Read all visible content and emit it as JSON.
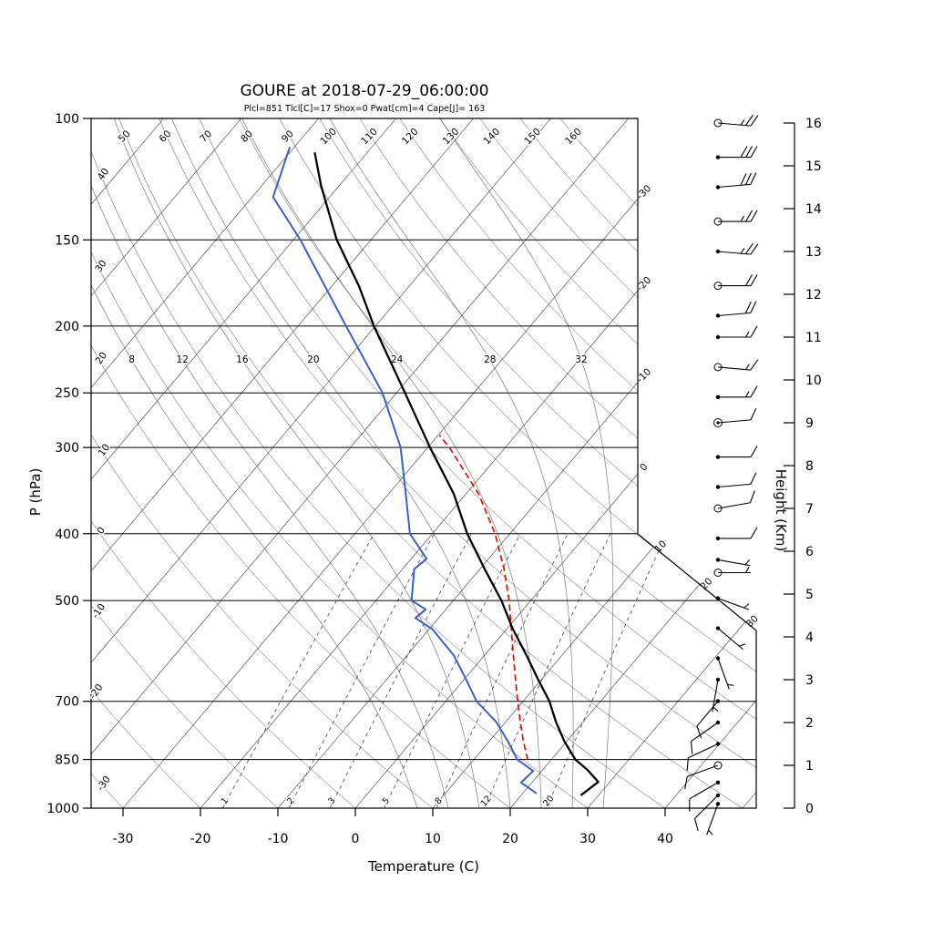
{
  "title": "GOURE at 2018-07-29_06:00:00",
  "subtitle": "Plcl=851 Tlcl[C]=17 Shox=0 Pwat[cm]=4 Cape[J]= 163",
  "colors": {
    "temperature": "#000000",
    "dewpoint": "#3a5fcd",
    "parcel": "#e01000",
    "subtitle": "#aa3322",
    "grid": "#000000"
  },
  "axes": {
    "pressure_label": "P (hPa)",
    "pressure_ticks": [
      100,
      150,
      200,
      250,
      300,
      400,
      500,
      700,
      850,
      1000
    ],
    "temp_label": "Temperature (C)",
    "temp_ticks": [
      -30,
      -20,
      -10,
      0,
      10,
      20,
      30,
      40
    ],
    "height_label": "Height (Km)",
    "height_ticks": [
      0,
      1,
      2,
      3,
      4,
      5,
      6,
      7,
      8,
      9,
      10,
      11,
      12,
      13,
      14,
      15,
      16
    ]
  },
  "grid": {
    "isotherm_step_C": 10,
    "isotherm_edge_labels": [
      -30,
      -20,
      -10,
      0,
      10,
      20,
      30
    ],
    "dry_adiabats": [
      -30,
      -20,
      -10,
      0,
      10,
      20,
      30,
      40,
      50,
      60,
      70,
      80,
      90,
      100,
      110,
      120,
      130,
      140,
      150,
      160
    ],
    "moist_adiabats": [
      8,
      12,
      16,
      20,
      24,
      28,
      32
    ],
    "mixing_ratio_lines": [
      1,
      2,
      3,
      5,
      8,
      12,
      20
    ]
  },
  "chart_data": {
    "type": "line",
    "variant": "skew-t-log-p-sounding",
    "station": "GOURE",
    "datetime": "2018-07-29_06:00:00",
    "indices": {
      "Plcl_hPa": 851,
      "Tlcl_C": 17,
      "Shox": 0,
      "Pwat_cm": 4,
      "Cape_J": 163
    },
    "xlabel": "Temperature (C)",
    "ylabel": "P (hPa)",
    "ylabel_right": "Height (Km)",
    "pressure_range_hPa": [
      100,
      1000
    ],
    "temp_axis_range_C": [
      -30,
      40
    ],
    "height_range_km": [
      0,
      16
    ],
    "series": [
      {
        "name": "temperature",
        "color": "#000000",
        "points_p_T": [
          [
            958,
            27.7
          ],
          [
            916,
            28.5
          ],
          [
            880,
            25.8
          ],
          [
            850,
            23.1
          ],
          [
            800,
            19.7
          ],
          [
            750,
            16.5
          ],
          [
            700,
            13.4
          ],
          [
            650,
            9.5
          ],
          [
            600,
            5.4
          ],
          [
            550,
            0.8
          ],
          [
            500,
            -3.8
          ],
          [
            450,
            -9.4
          ],
          [
            400,
            -15.5
          ],
          [
            350,
            -21.6
          ],
          [
            300,
            -29.7
          ],
          [
            250,
            -38.9
          ],
          [
            200,
            -50.2
          ],
          [
            175,
            -56.5
          ],
          [
            150,
            -64.4
          ],
          [
            125,
            -72.4
          ],
          [
            112,
            -76.8
          ]
        ]
      },
      {
        "name": "dewpoint",
        "color": "#3a5fcd",
        "points_p_T": [
          [
            952,
            21.8
          ],
          [
            918,
            18.6
          ],
          [
            883,
            18.9
          ],
          [
            850,
            15.6
          ],
          [
            800,
            12.4
          ],
          [
            750,
            8.8
          ],
          [
            700,
            4.0
          ],
          [
            650,
            0.2
          ],
          [
            600,
            -4.0
          ],
          [
            550,
            -9.6
          ],
          [
            530,
            -13.0
          ],
          [
            515,
            -12.6
          ],
          [
            500,
            -15.4
          ],
          [
            450,
            -18.5
          ],
          [
            435,
            -18.0
          ],
          [
            400,
            -22.9
          ],
          [
            350,
            -27.8
          ],
          [
            300,
            -33.5
          ],
          [
            250,
            -41.8
          ],
          [
            200,
            -53.8
          ],
          [
            150,
            -69.1
          ],
          [
            130,
            -77.3
          ],
          [
            110,
            -80.6
          ]
        ]
      },
      {
        "name": "parcel",
        "color": "#e01000",
        "points_p_T": [
          [
            851,
            17.0
          ],
          [
            800,
            14.4
          ],
          [
            750,
            11.9
          ],
          [
            700,
            9.3
          ],
          [
            650,
            6.6
          ],
          [
            600,
            3.7
          ],
          [
            550,
            0.6
          ],
          [
            500,
            -2.8
          ],
          [
            450,
            -6.9
          ],
          [
            400,
            -11.9
          ],
          [
            350,
            -18.4
          ],
          [
            300,
            -27.2
          ],
          [
            288,
            -29.8
          ]
        ]
      }
    ],
    "wind_barbs": [
      {
        "km": 16.0,
        "from_deg": 95,
        "kt": 25,
        "marker": "circle"
      },
      {
        "km": 15.2,
        "from_deg": 90,
        "kt": 30,
        "marker": "dot"
      },
      {
        "km": 14.5,
        "from_deg": 85,
        "kt": 30,
        "marker": "dot"
      },
      {
        "km": 13.7,
        "from_deg": 90,
        "kt": 25,
        "marker": "circle"
      },
      {
        "km": 13.0,
        "from_deg": 95,
        "kt": 25,
        "marker": "dot"
      },
      {
        "km": 12.2,
        "from_deg": 90,
        "kt": 20,
        "marker": "circle"
      },
      {
        "km": 11.5,
        "from_deg": 85,
        "kt": 20,
        "marker": "dot"
      },
      {
        "km": 11.0,
        "from_deg": 90,
        "kt": 15,
        "marker": "dot"
      },
      {
        "km": 10.3,
        "from_deg": 95,
        "kt": 15,
        "marker": "circle"
      },
      {
        "km": 9.6,
        "from_deg": 90,
        "kt": 15,
        "marker": "dot"
      },
      {
        "km": 9.0,
        "from_deg": 85,
        "kt": 10,
        "marker": "circle-dot"
      },
      {
        "km": 8.2,
        "from_deg": 90,
        "kt": 10,
        "marker": "dot"
      },
      {
        "km": 7.5,
        "from_deg": 85,
        "kt": 10,
        "marker": "dot"
      },
      {
        "km": 7.0,
        "from_deg": 80,
        "kt": 10,
        "marker": "circle"
      },
      {
        "km": 6.3,
        "from_deg": 90,
        "kt": 10,
        "marker": "dot"
      },
      {
        "km": 5.8,
        "from_deg": 100,
        "kt": 5,
        "marker": "dot"
      },
      {
        "km": 5.5,
        "from_deg": 90,
        "kt": 5,
        "marker": "circle"
      },
      {
        "km": 4.9,
        "from_deg": 110,
        "kt": 5,
        "marker": "dot"
      },
      {
        "km": 4.2,
        "from_deg": 130,
        "kt": 5,
        "marker": "dot"
      },
      {
        "km": 3.5,
        "from_deg": 160,
        "kt": 5,
        "marker": "dot"
      },
      {
        "km": 3.0,
        "from_deg": 190,
        "kt": 5,
        "marker": "dot"
      },
      {
        "km": 2.5,
        "from_deg": 220,
        "kt": 8,
        "marker": "dot"
      },
      {
        "km": 2.0,
        "from_deg": 235,
        "kt": 10,
        "marker": "dot"
      },
      {
        "km": 1.5,
        "from_deg": 245,
        "kt": 10,
        "marker": "dot"
      },
      {
        "km": 1.0,
        "from_deg": 250,
        "kt": 12,
        "marker": "circle"
      },
      {
        "km": 0.6,
        "from_deg": 240,
        "kt": 10,
        "marker": "dot"
      },
      {
        "km": 0.3,
        "from_deg": 225,
        "kt": 8,
        "marker": "dot"
      },
      {
        "km": 0.1,
        "from_deg": 200,
        "kt": 5,
        "marker": "dot"
      }
    ]
  }
}
